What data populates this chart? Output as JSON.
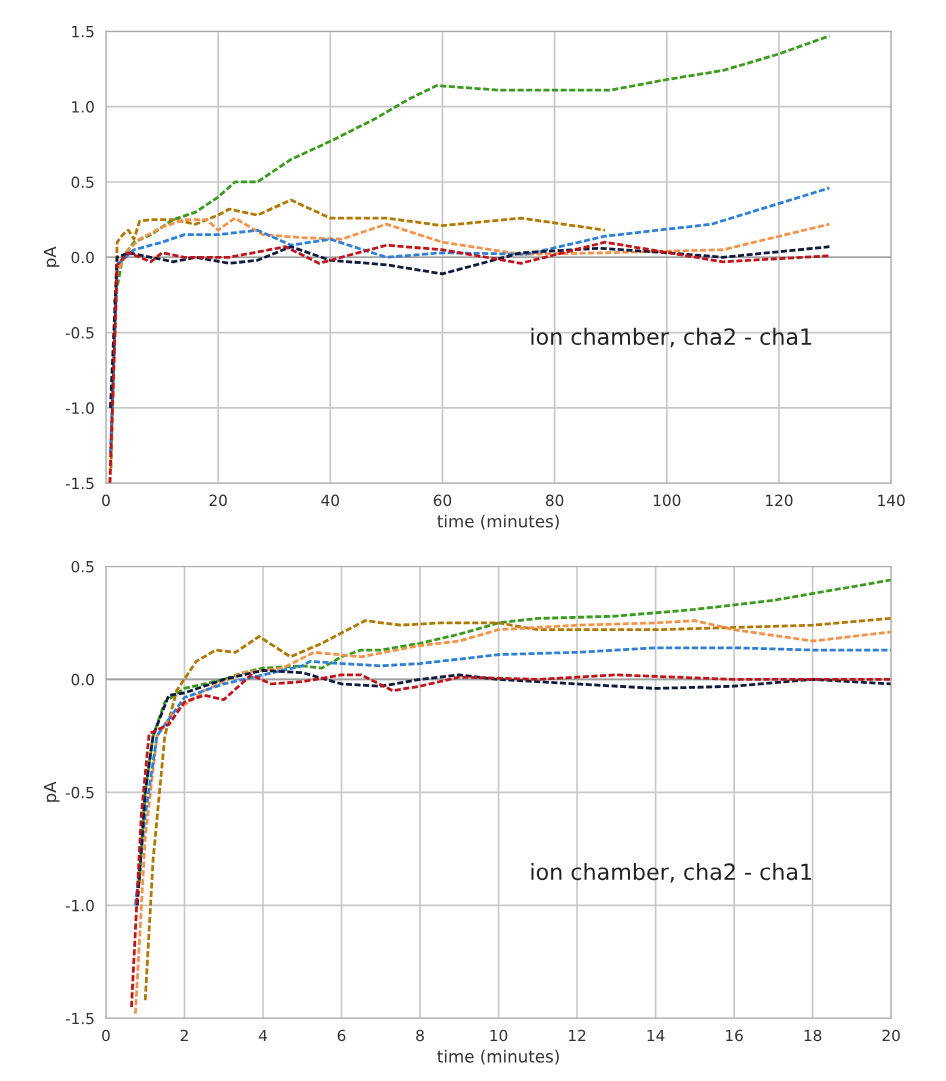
{
  "chart_data": [
    {
      "type": "line",
      "xlabel": "time (minutes)",
      "ylabel": "pA",
      "annotations": [
        "ion chamber, cha2 - cha1"
      ],
      "xlim": [
        0,
        140
      ],
      "xticks": [
        0,
        20,
        40,
        60,
        80,
        100,
        120,
        140
      ],
      "ylim": [
        -1.5,
        1.5
      ],
      "yticks": [
        {
          "value": -1.5,
          "label": "-1.5"
        },
        {
          "value": -1.0,
          "label": "-1.0"
        },
        {
          "value": -0.5,
          "label": "-0.5"
        },
        {
          "value": 0,
          "label": "0.0"
        },
        {
          "value": 0.5,
          "label": "0.5"
        },
        {
          "value": 1.0,
          "label": "1.0"
        },
        {
          "value": 1.5,
          "label": "1.5"
        }
      ],
      "grid": true,
      "marker": "none",
      "line_style": "dashed",
      "series": [
        {
          "color": "#3a9a1e",
          "x": [
            1.5,
            3,
            5,
            8,
            12,
            16,
            20,
            23,
            27,
            33,
            40,
            48,
            54,
            59,
            70,
            80,
            90,
            100,
            110,
            120,
            129
          ],
          "values": [
            -0.3,
            0.0,
            0.1,
            0.15,
            0.25,
            0.3,
            0.4,
            0.5,
            0.5,
            0.65,
            0.77,
            0.92,
            1.05,
            1.14,
            1.11,
            1.11,
            1.11,
            1.18,
            1.24,
            1.35,
            1.47
          ]
        },
        {
          "color": "#b07800",
          "x": [
            0.9,
            2,
            3,
            4,
            5,
            6,
            8,
            12,
            16,
            20,
            22,
            27,
            33,
            40,
            50,
            60,
            74,
            89
          ],
          "values": [
            -1.4,
            0.1,
            0.15,
            0.18,
            0.12,
            0.24,
            0.25,
            0.25,
            0.22,
            0.28,
            0.32,
            0.28,
            0.38,
            0.26,
            0.26,
            0.21,
            0.26,
            0.18
          ]
        },
        {
          "color": "#f5924a",
          "x": [
            0.7,
            2,
            4,
            6,
            10,
            14,
            18,
            20,
            23,
            28,
            35,
            42,
            50,
            60,
            74,
            89,
            110,
            129
          ],
          "values": [
            -1.5,
            -0.1,
            0.05,
            0.12,
            0.2,
            0.25,
            0.25,
            0.18,
            0.26,
            0.15,
            0.13,
            0.12,
            0.22,
            0.1,
            0.02,
            0.03,
            0.05,
            0.22
          ]
        },
        {
          "color": "#2e7fd6",
          "x": [
            0.8,
            2,
            5,
            10,
            14,
            20,
            27,
            33,
            40,
            50,
            60,
            75,
            89,
            108,
            129
          ],
          "values": [
            -1.3,
            -0.05,
            0.05,
            0.1,
            0.15,
            0.15,
            0.18,
            0.08,
            0.12,
            0.0,
            0.03,
            0.02,
            0.14,
            0.22,
            0.46
          ]
        },
        {
          "color": "#101a3c",
          "x": [
            0.8,
            2,
            4,
            8,
            12,
            16,
            22,
            27,
            33,
            40,
            50,
            60,
            74,
            88,
            100,
            110,
            129
          ],
          "values": [
            -1.0,
            0.0,
            0.03,
            0.0,
            -0.03,
            0.0,
            -0.04,
            -0.02,
            0.07,
            -0.02,
            -0.05,
            -0.11,
            0.03,
            0.06,
            0.03,
            0.0,
            0.07
          ]
        },
        {
          "color": "#c0141c",
          "x": [
            0.7,
            2,
            4,
            6,
            8,
            10,
            14,
            22,
            32,
            38,
            50,
            60,
            74,
            89,
            110,
            129
          ],
          "values": [
            -1.5,
            -0.05,
            0.03,
            0.0,
            -0.03,
            0.03,
            0.0,
            0.0,
            0.07,
            -0.04,
            0.08,
            0.05,
            -0.04,
            0.1,
            -0.03,
            0.01
          ]
        }
      ]
    },
    {
      "type": "line",
      "xlabel": "time (minutes)",
      "ylabel": "pA",
      "annotations": [
        "ion chamber, cha2 - cha1"
      ],
      "xlim": [
        0,
        20
      ],
      "xticks": [
        0,
        2,
        4,
        6,
        8,
        10,
        12,
        14,
        16,
        18,
        20
      ],
      "ylim": [
        -1.5,
        0.5
      ],
      "yticks": [
        {
          "value": -1.5,
          "label": "-1.5"
        },
        {
          "value": -1.0,
          "label": "-1.0"
        },
        {
          "value": -0.5,
          "label": "-0.5"
        },
        {
          "value": 0,
          "label": "0.0"
        },
        {
          "value": 0.5,
          "label": "0.5"
        }
      ],
      "grid": true,
      "marker": "none",
      "line_style": "dashed",
      "series": [
        {
          "color": "#3a9a1e",
          "x": [
            0.85,
            1.0,
            1.2,
            1.5,
            2,
            3,
            3.5,
            4,
            5,
            5.5,
            6,
            6.5,
            7,
            8,
            9,
            10,
            11,
            13,
            15,
            17,
            19,
            20
          ],
          "values": [
            -0.9,
            -0.5,
            -0.25,
            -0.1,
            -0.04,
            0.0,
            0.03,
            0.05,
            0.06,
            0.05,
            0.1,
            0.13,
            0.13,
            0.16,
            0.2,
            0.25,
            0.27,
            0.28,
            0.31,
            0.35,
            0.41,
            0.44
          ]
        },
        {
          "color": "#b07800",
          "x": [
            1.0,
            1.2,
            1.5,
            1.8,
            2.3,
            2.8,
            3.3,
            3.9,
            4.7,
            5.5,
            6.6,
            7.5,
            8.5,
            10,
            11,
            14,
            16,
            18,
            20
          ],
          "values": [
            -1.42,
            -0.8,
            -0.25,
            -0.05,
            0.08,
            0.13,
            0.12,
            0.19,
            0.1,
            0.16,
            0.26,
            0.24,
            0.25,
            0.25,
            0.22,
            0.22,
            0.23,
            0.24,
            0.27
          ]
        },
        {
          "color": "#f5924a",
          "x": [
            0.75,
            1.0,
            1.3,
            1.7,
            2.5,
            3.5,
            4.5,
            5.3,
            6.5,
            8,
            9,
            10,
            12,
            14,
            15,
            16,
            18,
            20
          ],
          "values": [
            -1.48,
            -0.7,
            -0.25,
            -0.15,
            -0.05,
            0.03,
            0.05,
            0.12,
            0.1,
            0.15,
            0.17,
            0.22,
            0.24,
            0.25,
            0.26,
            0.22,
            0.17,
            0.21
          ]
        },
        {
          "color": "#2e7fd6",
          "x": [
            0.75,
            1.0,
            1.3,
            2,
            3,
            4,
            5,
            5.2,
            6,
            7,
            8,
            9,
            10,
            12,
            14,
            16,
            18,
            20
          ],
          "values": [
            -1.0,
            -0.6,
            -0.25,
            -0.08,
            -0.02,
            0.02,
            0.06,
            0.08,
            0.07,
            0.06,
            0.07,
            0.09,
            0.11,
            0.12,
            0.14,
            0.14,
            0.13,
            0.13
          ]
        },
        {
          "color": "#101a3c",
          "x": [
            0.8,
            1.0,
            1.2,
            1.6,
            2,
            3,
            4,
            5,
            6,
            7,
            8,
            9,
            10,
            12,
            14,
            16,
            18,
            20
          ],
          "values": [
            -1.0,
            -0.5,
            -0.25,
            -0.07,
            -0.06,
            0.0,
            0.04,
            0.03,
            -0.02,
            -0.03,
            0.0,
            0.02,
            0.0,
            -0.02,
            -0.04,
            -0.03,
            0.0,
            -0.02
          ]
        },
        {
          "color": "#c0141c",
          "x": [
            0.65,
            0.9,
            1.1,
            1.6,
            2,
            2.5,
            3,
            3.7,
            4.2,
            5,
            6,
            6.5,
            7.3,
            8,
            9,
            11,
            13,
            16,
            18,
            20
          ],
          "values": [
            -1.45,
            -0.6,
            -0.24,
            -0.2,
            -0.1,
            -0.07,
            -0.09,
            0.02,
            -0.02,
            -0.01,
            0.02,
            0.02,
            -0.05,
            -0.03,
            0.01,
            0.0,
            0.02,
            0.0,
            0.0,
            0.0
          ]
        }
      ]
    }
  ]
}
